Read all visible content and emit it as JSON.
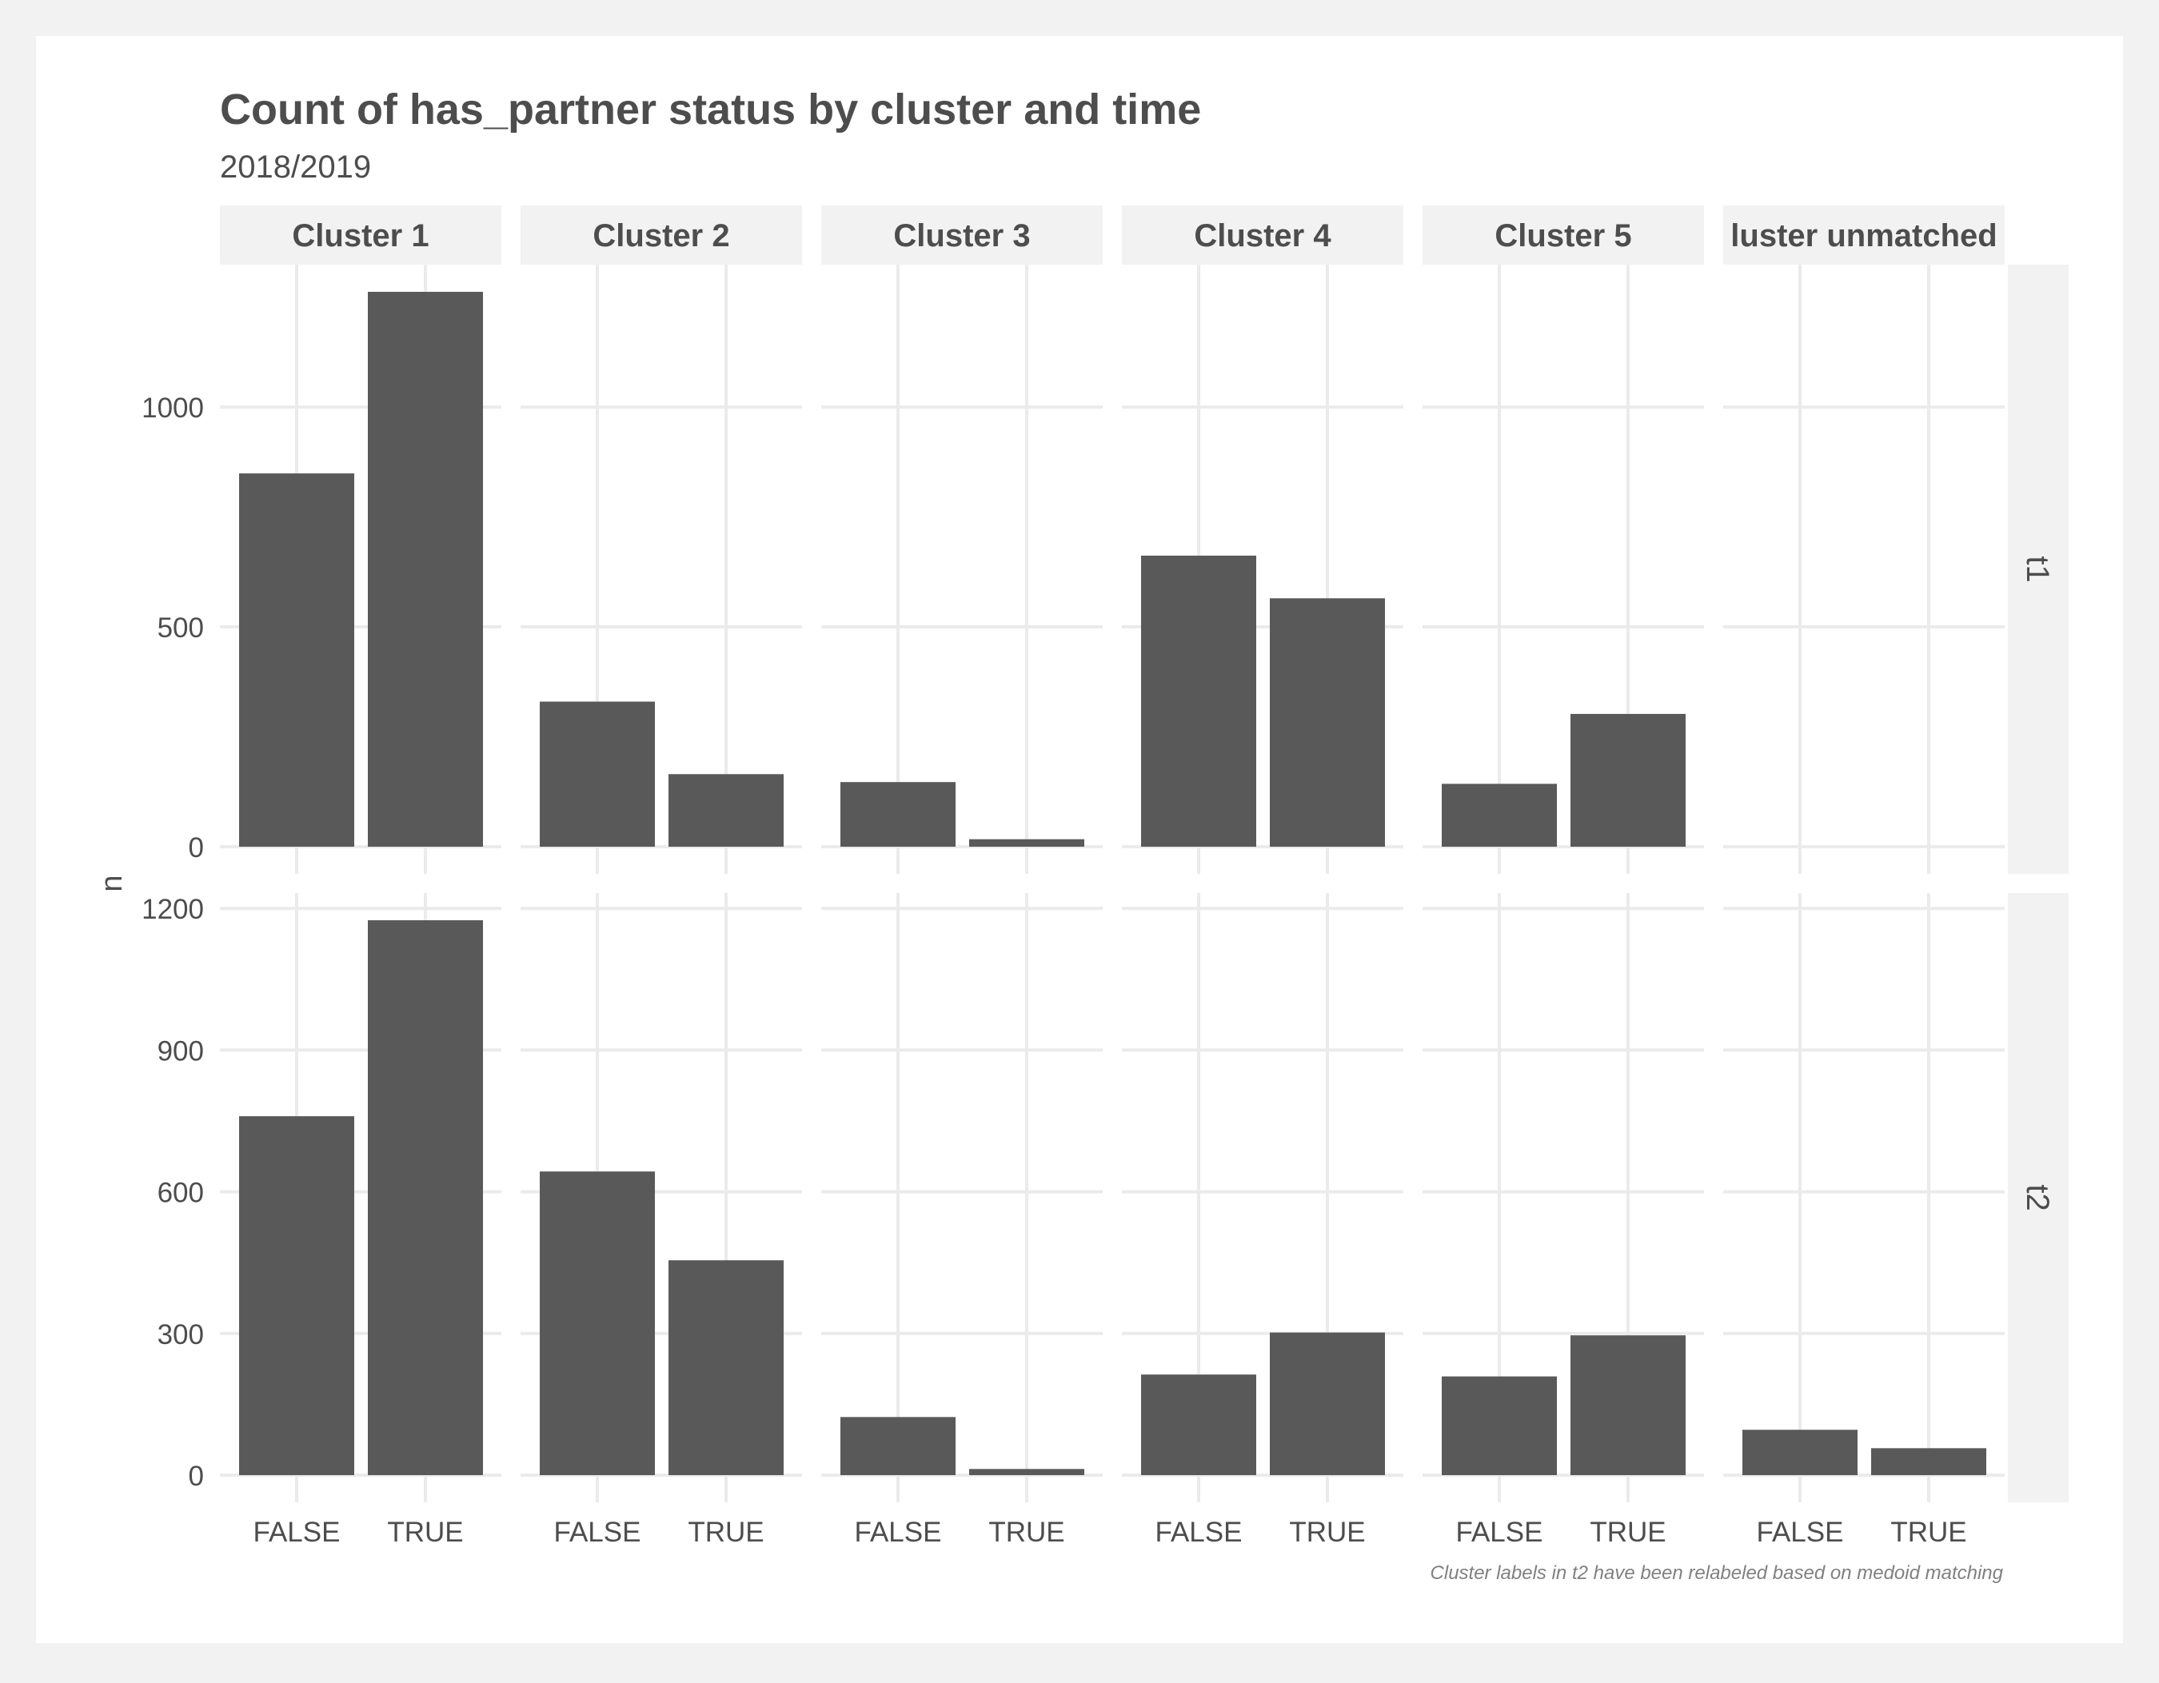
{
  "chart_data": {
    "type": "bar",
    "title": "Count of has_partner status by cluster and time",
    "subtitle": "2018/2019",
    "xlabel": "",
    "ylabel": "n",
    "caption": "Cluster labels in t2 have been relabeled based on medoid matching",
    "categories": [
      "FALSE",
      "TRUE"
    ],
    "facet_columns": [
      "Cluster 1",
      "Cluster 2",
      "Cluster 3",
      "Cluster 4",
      "Cluster 5",
      "luster unmatched"
    ],
    "facet_rows": [
      {
        "name": "t1",
        "ylim": [
          0,
          1262
        ],
        "yticks": [
          0,
          500,
          1000
        ],
        "panels": [
          {
            "column": "Cluster 1",
            "values": [
              849,
              1262
            ]
          },
          {
            "column": "Cluster 2",
            "values": [
              330,
              165
            ]
          },
          {
            "column": "Cluster 3",
            "values": [
              147,
              17
            ]
          },
          {
            "column": "Cluster 4",
            "values": [
              662,
              565
            ]
          },
          {
            "column": "Cluster 5",
            "values": [
              143,
              302
            ]
          },
          {
            "column": "luster unmatched",
            "values": [
              0,
              0
            ]
          }
        ]
      },
      {
        "name": "t2",
        "ylim": [
          0,
          1175
        ],
        "yticks": [
          0,
          300,
          600,
          900,
          1200
        ],
        "panels": [
          {
            "column": "Cluster 1",
            "values": [
              760,
              1175
            ]
          },
          {
            "column": "Cluster 2",
            "values": [
              643,
              455
            ]
          },
          {
            "column": "Cluster 3",
            "values": [
              123,
              13
            ]
          },
          {
            "column": "Cluster 4",
            "values": [
              213,
              302
            ]
          },
          {
            "column": "Cluster 5",
            "values": [
              209,
              296
            ]
          },
          {
            "column": "luster unmatched",
            "values": [
              96,
              57
            ]
          }
        ]
      }
    ],
    "grid": true,
    "colors": {
      "bar": "#595959",
      "grid": "#ebebeb",
      "strip": "#f2f2f2",
      "text": "#4d4d4d",
      "caption": "#808080",
      "background": "#ffffff"
    }
  }
}
